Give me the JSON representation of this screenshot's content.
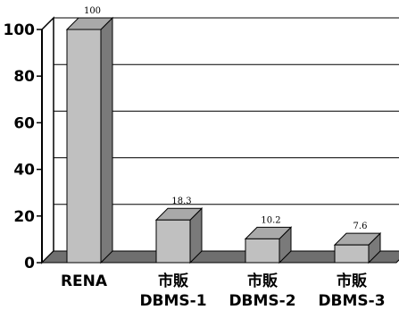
{
  "chart_data": {
    "type": "bar",
    "categories": [
      [
        "RENA"
      ],
      [
        "市販",
        "DBMS-1"
      ],
      [
        "市販",
        "DBMS-2"
      ],
      [
        "市販",
        "DBMS-3"
      ]
    ],
    "values": [
      100,
      18.3,
      10.2,
      7.6
    ],
    "data_labels": [
      "100",
      "18.3",
      "10.2",
      "7.6"
    ],
    "yticks": [
      "0",
      "20",
      "40",
      "60",
      "80",
      "100"
    ],
    "ylim": [
      0,
      100
    ],
    "grid": true,
    "colors": {
      "bar_front": "#c0c0c0",
      "bar_side": "#7a7a7a",
      "bar_top": "#a9a9a9",
      "floor": "#6f6f6f",
      "wall": "#000000"
    }
  }
}
